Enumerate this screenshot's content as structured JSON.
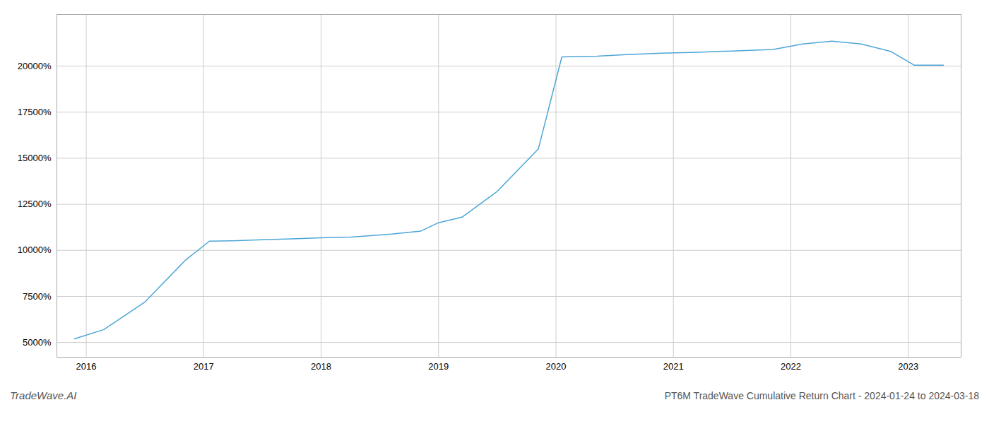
{
  "chart_data": {
    "type": "line",
    "title": "PT6M TradeWave Cumulative Return Chart - 2024-01-24 to 2024-03-18",
    "annotations": [
      "TradeWave.AI"
    ],
    "x": [
      2015.9,
      2016.15,
      2016.5,
      2016.85,
      2017.05,
      2017.25,
      2017.5,
      2017.75,
      2018.0,
      2018.25,
      2018.6,
      2018.85,
      2019.0,
      2019.2,
      2019.5,
      2019.85,
      2020.05,
      2020.2,
      2020.35,
      2020.6,
      2020.9,
      2021.2,
      2021.5,
      2021.85,
      2022.1,
      2022.35,
      2022.6,
      2022.85,
      2023.05,
      2023.3
    ],
    "values": [
      5200,
      5700,
      7200,
      9500,
      10500,
      10520,
      10580,
      10620,
      10680,
      10720,
      10880,
      11050,
      11500,
      11800,
      13200,
      15500,
      20500,
      20520,
      20540,
      20620,
      20700,
      20750,
      20820,
      20900,
      21200,
      21350,
      21200,
      20800,
      20050,
      20050
    ],
    "color": "#4da6d8",
    "xlim": [
      2015.75,
      2023.45
    ],
    "ylim": [
      4200,
      22800
    ],
    "xticks": [
      2016,
      2017,
      2018,
      2019,
      2020,
      2021,
      2022,
      2023
    ],
    "yticks": [
      {
        "value": 5000,
        "label": "5000%"
      },
      {
        "value": 7500,
        "label": "7500%"
      },
      {
        "value": 10000,
        "label": "10000%"
      },
      {
        "value": 12500,
        "label": "12500%"
      },
      {
        "value": 15000,
        "label": "15000%"
      },
      {
        "value": 17500,
        "label": "17500%"
      },
      {
        "value": 20000,
        "label": "20000%"
      }
    ],
    "grid": true
  }
}
